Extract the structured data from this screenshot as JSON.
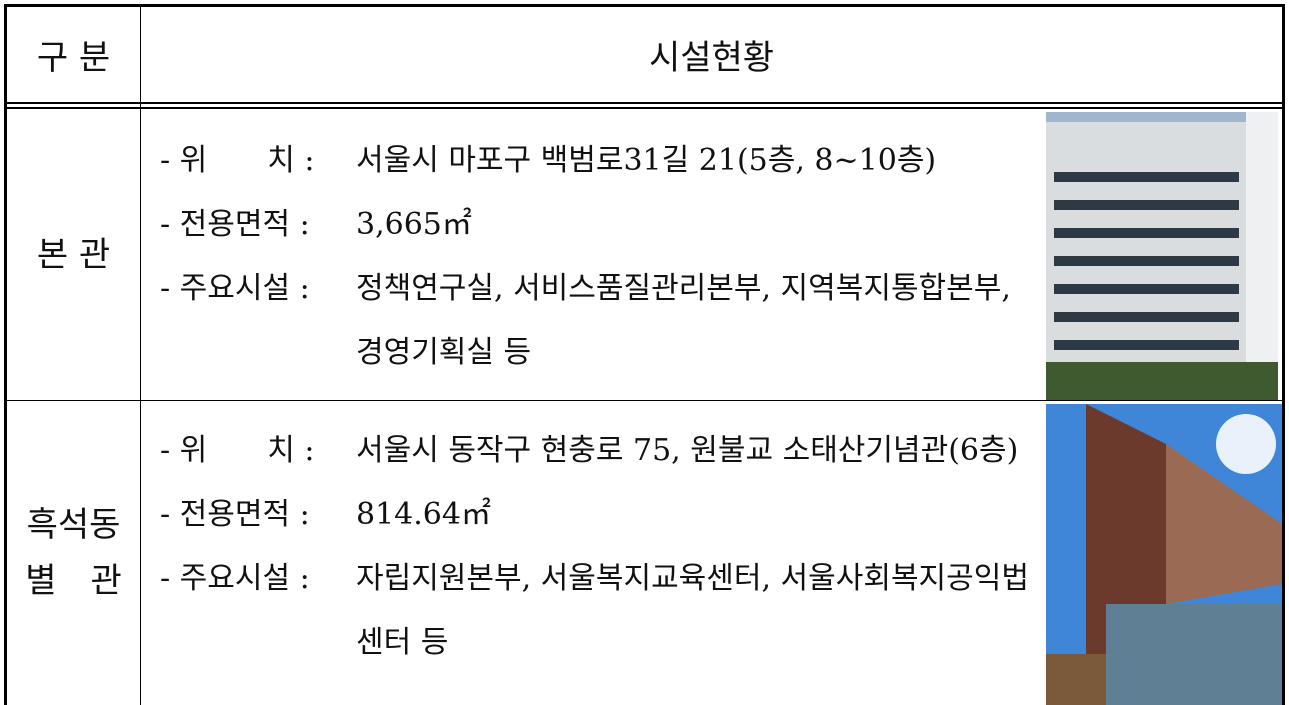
{
  "header": {
    "col1": "구 분",
    "col2": "시설현황"
  },
  "rows": [
    {
      "name_lines": [
        "본 관"
      ],
      "items": [
        {
          "label": "- 위　　치 :",
          "value": "서울시 마포구 백범로31길 21(5층, 8~10층)"
        },
        {
          "label": "- 전용면적 :",
          "value": "3,665㎡"
        },
        {
          "label": "- 주요시설 :",
          "value": "정책연구실, 서비스품질관리본부, 지역복지통합본부, 경영기획실 등"
        }
      ]
    },
    {
      "name_lines": [
        "흑석동",
        "별　관"
      ],
      "items": [
        {
          "label": "- 위　　치 :",
          "value": "서울시 동작구 현충로 75, 원불교 소태산기념관(6층)"
        },
        {
          "label": "- 전용면적 :",
          "value": "814.64㎡"
        },
        {
          "label": "- 주요시설 :",
          "value": "자립지원본부, 서울복지교육센터, 서울사회복지공익법센터 등"
        }
      ]
    }
  ]
}
